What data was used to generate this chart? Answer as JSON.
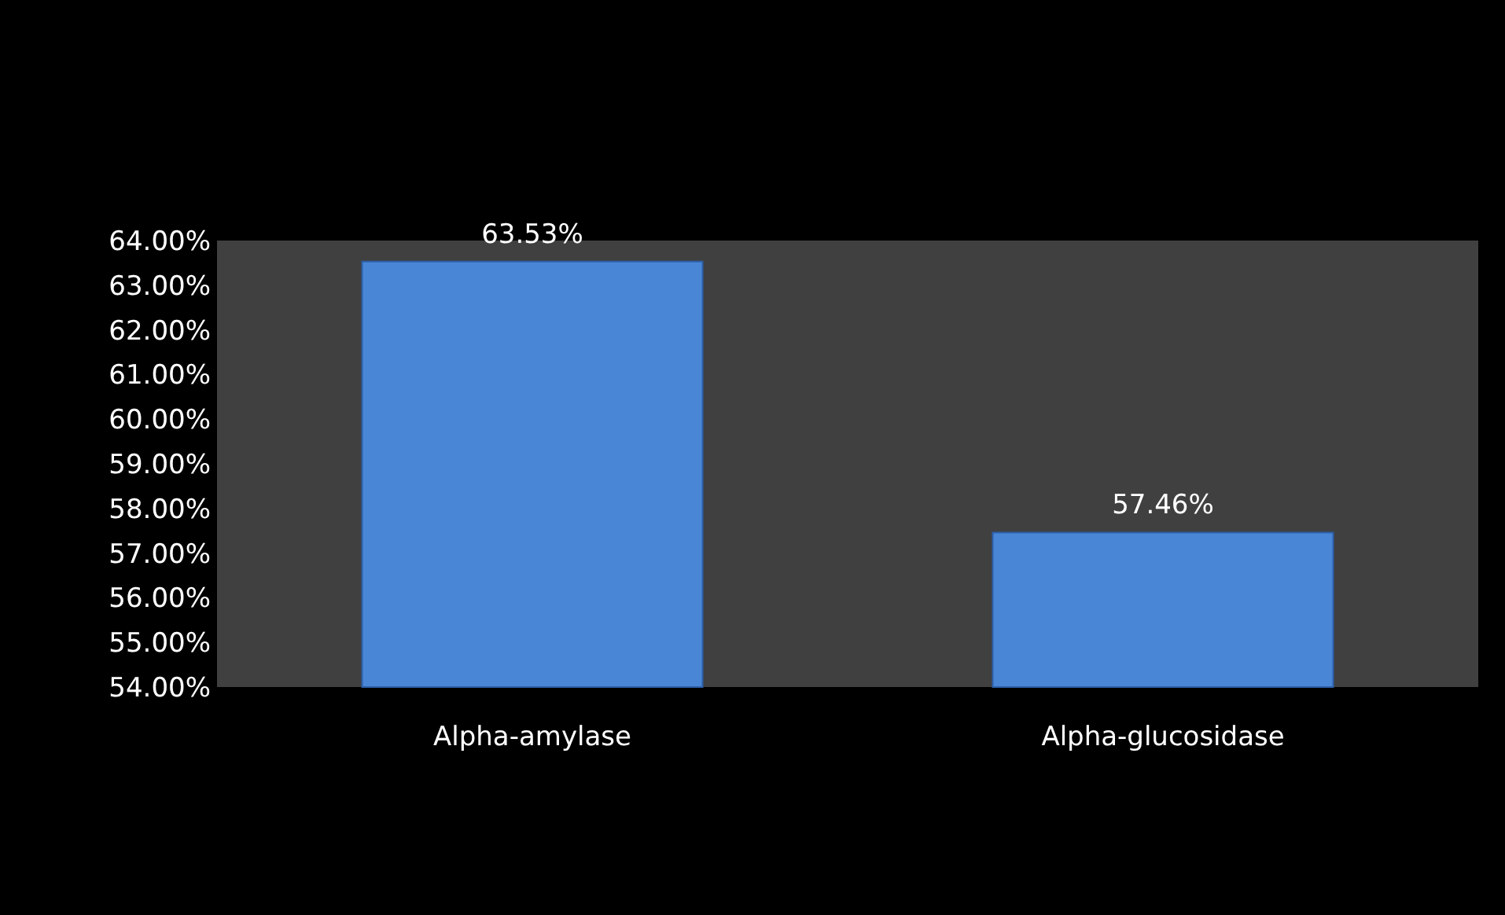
{
  "chart_data": {
    "type": "bar",
    "categories": [
      "Alpha-amylase",
      "Alpha-glucosidase"
    ],
    "values": [
      63.53,
      57.46
    ],
    "color": "#4a86d6",
    "value_labels": [
      "63.53%",
      "57.46%"
    ],
    "ylim": [
      54,
      64
    ],
    "yticks": [
      {
        "value": 54,
        "label": "54.00%"
      },
      {
        "value": 55,
        "label": "55.00%"
      },
      {
        "value": 56,
        "label": "56.00%"
      },
      {
        "value": 57,
        "label": "57.00%"
      },
      {
        "value": 58,
        "label": "58.00%"
      },
      {
        "value": 59,
        "label": "59.00%"
      },
      {
        "value": 60,
        "label": "60.00%"
      },
      {
        "value": 61,
        "label": "61.00%"
      },
      {
        "value": 62,
        "label": "62.00%"
      },
      {
        "value": 63,
        "label": "63.00%"
      },
      {
        "value": 64,
        "label": "64.00%"
      }
    ],
    "grid": false
  }
}
